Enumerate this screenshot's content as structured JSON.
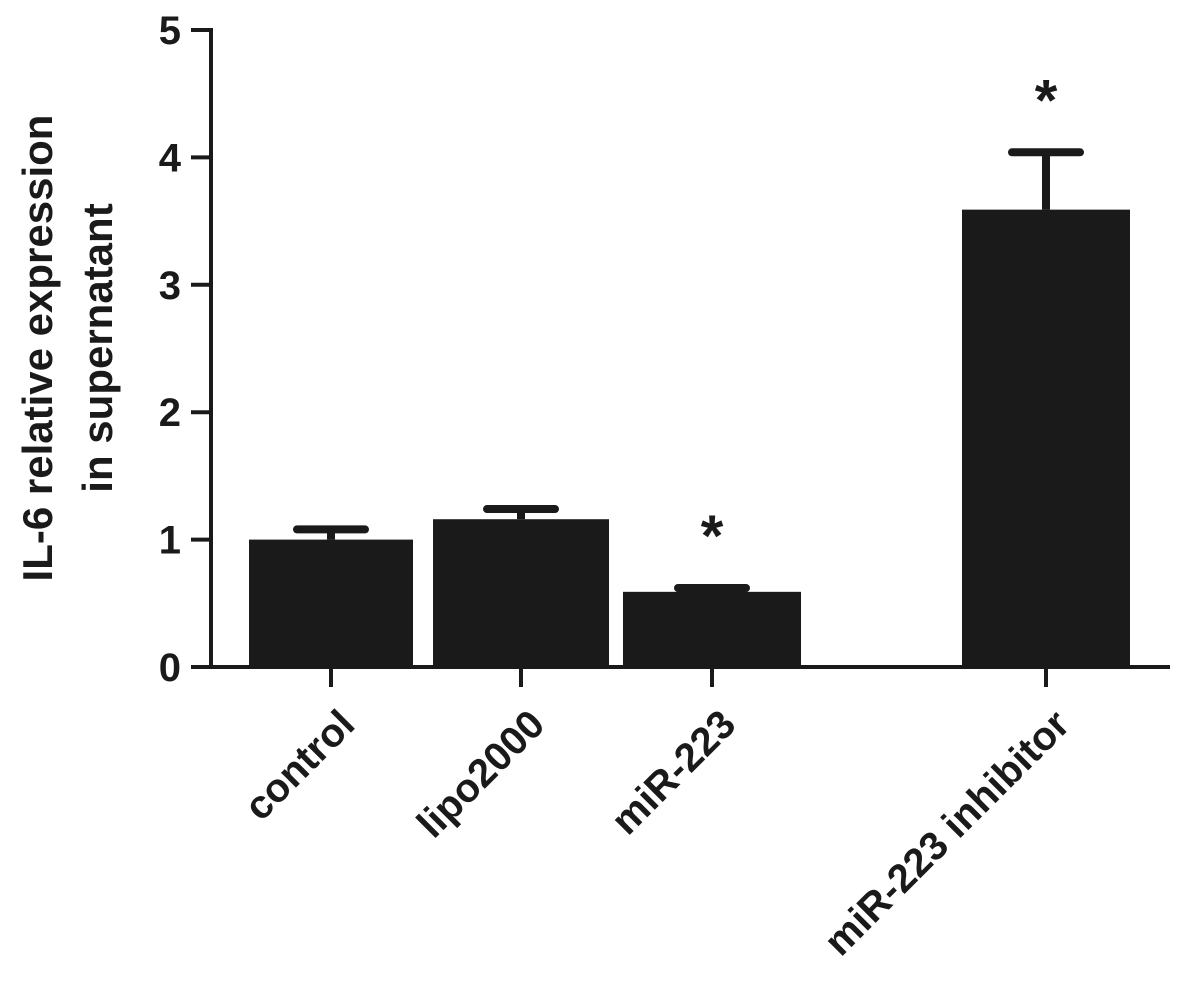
{
  "chart_data": {
    "type": "bar",
    "categories": [
      "control",
      "lipo2000",
      "miR-223",
      "miR-223 inhibitor"
    ],
    "values": [
      1.0,
      1.16,
      0.59,
      3.59
    ],
    "errors": [
      0.08,
      0.08,
      0.03,
      0.45
    ],
    "significance": [
      "",
      "",
      "*",
      "*"
    ],
    "ylabel_lines": [
      "IL-6 relative expression",
      "in supernatant"
    ],
    "xlabel": "",
    "ylim": [
      0,
      5
    ],
    "yticks": [
      0,
      1,
      2,
      3,
      4,
      5
    ],
    "bar_color": "#1a1a1a",
    "grid": false,
    "legend": "none"
  }
}
